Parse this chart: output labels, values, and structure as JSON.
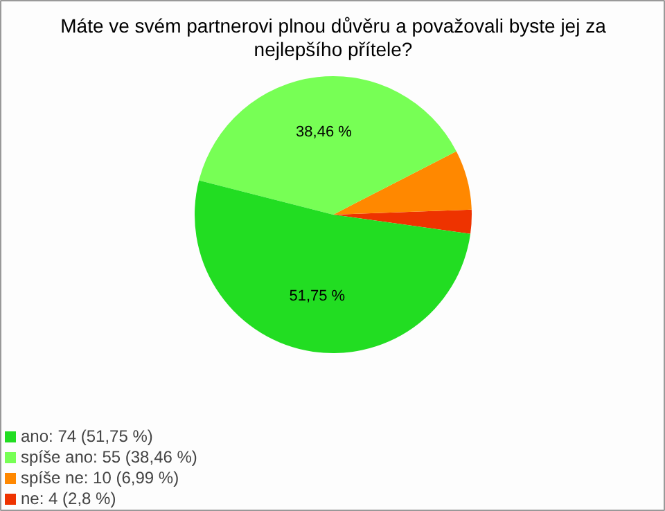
{
  "chart_data": {
    "type": "pie",
    "title": "Máte ve svém partnerovi plnou důvěru a považovali byste jej za nejlepšího přítele?",
    "categories": [
      "ano: 74 (51,75 %)",
      "spíše ano: 55 (38,46 %)",
      "spíše ne: 10 (6,99 %)",
      "ne: 4 (2,8 %)"
    ],
    "values": [
      51.75,
      38.46,
      6.99,
      2.8
    ],
    "colors": [
      "#22dd22",
      "#77ff55",
      "#ff8800",
      "#ee3300"
    ],
    "value_labels": [
      "51,75 %",
      "38,46 %",
      null,
      null
    ],
    "legend": "bottom left"
  }
}
